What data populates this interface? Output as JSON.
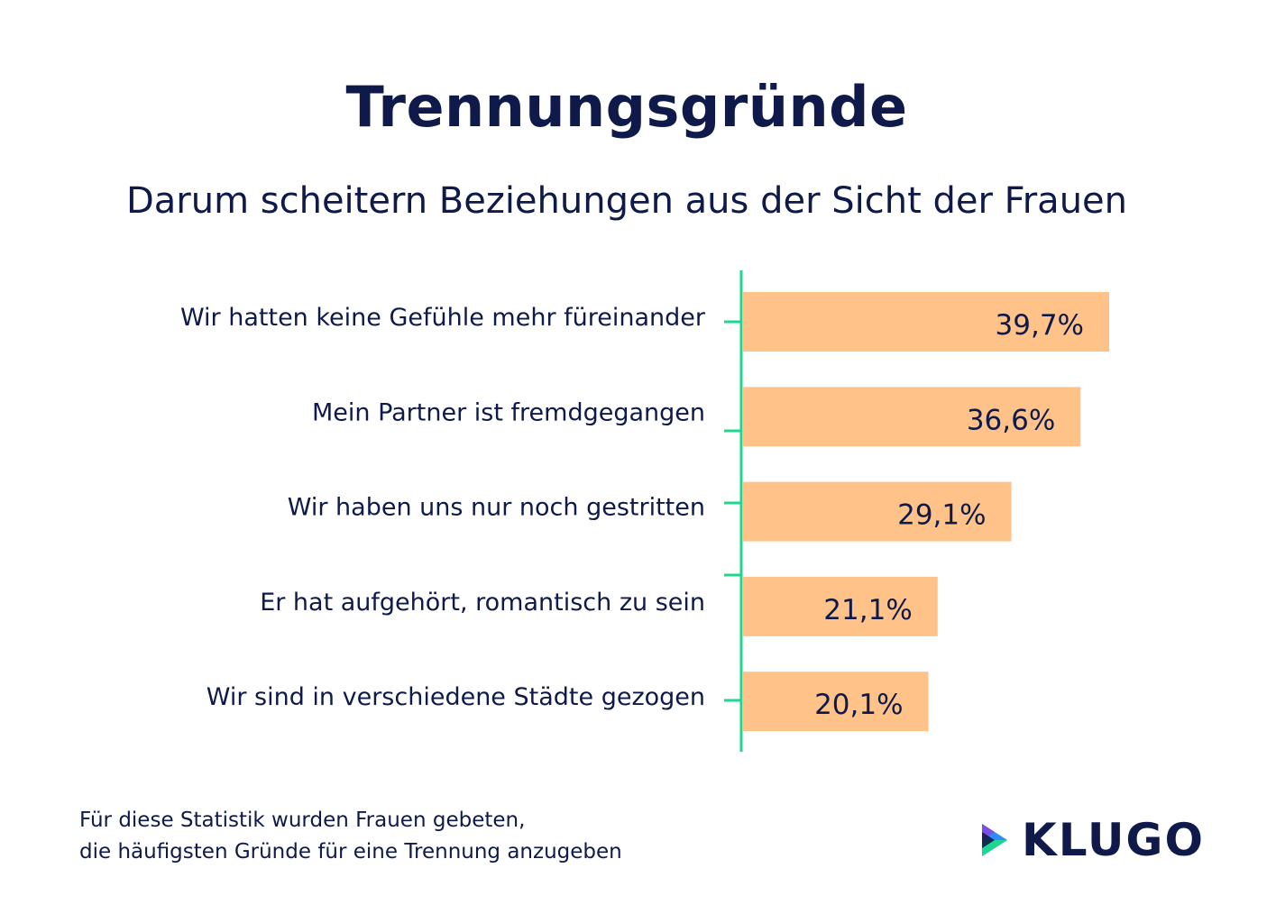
{
  "header": {
    "title": "Trennungsgründe",
    "subtitle": "Darum scheitern Beziehungen aus der Sicht der Frauen"
  },
  "chart_data": {
    "type": "bar",
    "orientation": "horizontal",
    "categories": [
      "Wir hatten keine Gefühle mehr füreinander",
      "Mein Partner ist fremdgegangen",
      "Wir haben uns nur noch gestritten",
      "Er hat aufgehört, romantisch zu sein",
      "Wir sind in verschiedene Städte gezogen"
    ],
    "values": [
      39.7,
      36.6,
      29.1,
      21.1,
      20.1
    ],
    "value_labels": [
      "39,7%",
      "36,6%",
      "29,1%",
      "21,1%",
      "20,1%"
    ],
    "bar_color": "#ffc38a",
    "axis_color": "#1fd691",
    "xlim": [
      0,
      40
    ],
    "grid": false,
    "legend": "none"
  },
  "footnote": {
    "line1": "Für diese Statistik wurden Frauen gebeten,",
    "line2": "die häufigsten Gründe für eine Trennung anzugeben"
  },
  "brand": {
    "name": "KLUGO",
    "icon": "klugo-play-icon",
    "colors": [
      "#0f1a4a",
      "#2d8cff",
      "#1fd691",
      "#7b4fe0"
    ]
  }
}
